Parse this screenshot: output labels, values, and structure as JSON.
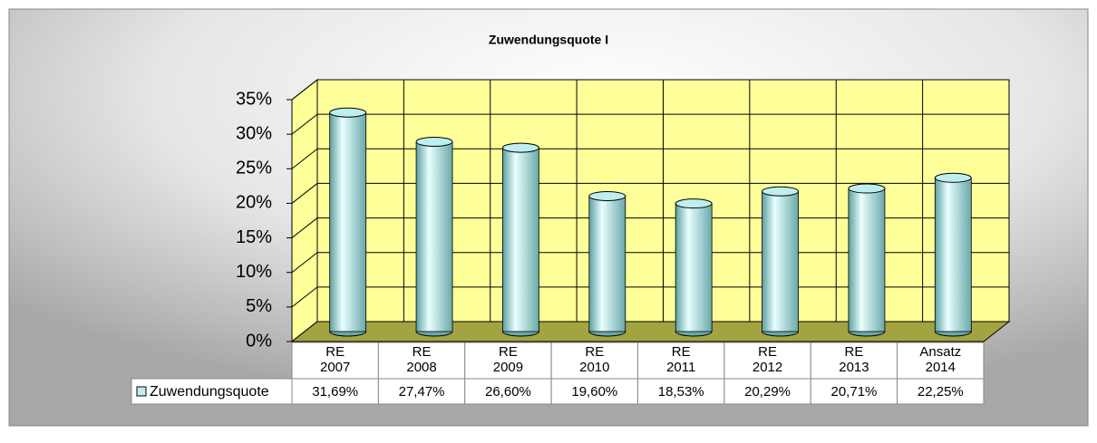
{
  "chart_data": {
    "type": "bar3d",
    "title": "Zuwendungsquote I",
    "categories": [
      "RE 2007",
      "RE 2008",
      "RE 2009",
      "RE 2010",
      "RE 2011",
      "RE 2012",
      "RE 2013",
      "Ansatz 2014"
    ],
    "series": [
      {
        "name": "Zuwendungsquote",
        "color": "#bfeeee",
        "values": [
          31.69,
          27.47,
          26.6,
          19.6,
          18.53,
          20.29,
          20.71,
          22.25
        ],
        "value_labels": [
          "31,69%",
          "27,47%",
          "26,60%",
          "19,60%",
          "18,53%",
          "20,29%",
          "20,71%",
          "22,25%"
        ]
      }
    ],
    "ylim": [
      0,
      35
    ],
    "yticks": [
      {
        "value": 0,
        "label": "0%"
      },
      {
        "value": 5,
        "label": "5%"
      },
      {
        "value": 10,
        "label": "10%"
      },
      {
        "value": 15,
        "label": "15%"
      },
      {
        "value": 20,
        "label": "20%"
      },
      {
        "value": 25,
        "label": "25%"
      },
      {
        "value": 30,
        "label": "30%"
      },
      {
        "value": 35,
        "label": "35%"
      }
    ],
    "grid": true,
    "wall_color": "#ffff99",
    "floor_color": "#a3a342"
  }
}
